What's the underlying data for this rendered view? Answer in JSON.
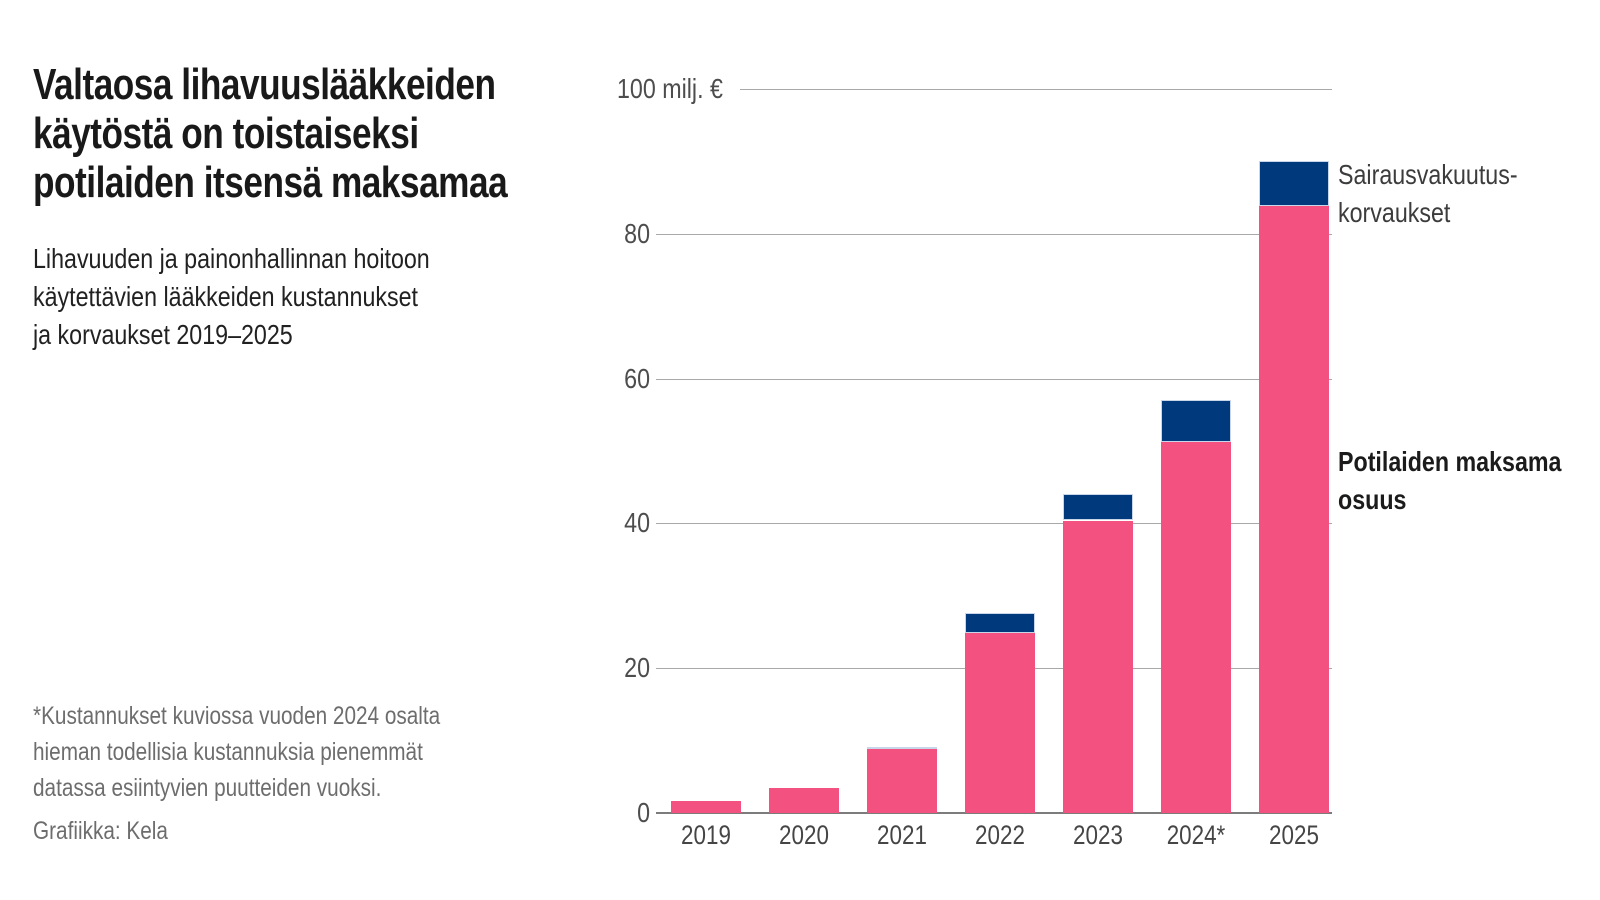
{
  "header": {
    "title_lines": [
      "Valtaosa lihavuuslääkkeiden",
      "käytöstä on toistaiseksi",
      "potilaiden itsensä maksamaa"
    ],
    "subtitle_lines": [
      "Lihavuuden ja painonhallinnan hoitoon",
      "käytettävien lääkkeiden kustannukset",
      "ja korvaukset 2019–2025"
    ]
  },
  "footnote_lines": [
    "*Kustannukset kuviossa vuoden 2024 osalta",
    "hieman todellisia kustannuksia pienemmät",
    "datassa esiintyvien puutteiden vuoksi."
  ],
  "credit": "Grafiikka: Kela",
  "chart_data": {
    "type": "bar",
    "stacked": true,
    "title": "Lihavuuden ja painonhallinnan hoitoon käytettävien lääkkeiden kustannukset ja korvaukset 2019–2025",
    "unit": "milj. €",
    "categories": [
      "2019",
      "2020",
      "2021",
      "2022",
      "2023",
      "2024*",
      "2025"
    ],
    "series": [
      {
        "name": "Potilaiden maksama osuus",
        "color": "#f3517f",
        "values": [
          1.7,
          3.5,
          8.8,
          24.8,
          40.4,
          51.3,
          83.8
        ]
      },
      {
        "name": "Sairausvakuutuskorvaukset",
        "color": "#003a7d",
        "values": [
          0,
          0,
          0.3,
          2.8,
          3.7,
          5.8,
          6.2
        ]
      }
    ],
    "ylim": [
      0,
      100
    ],
    "grid": true,
    "yticks": [
      {
        "value": 0,
        "label": "0"
      },
      {
        "value": 20,
        "label": "20"
      },
      {
        "value": 40,
        "label": "40"
      },
      {
        "value": 60,
        "label": "60"
      },
      {
        "value": 80,
        "label": "80"
      },
      {
        "value": 100,
        "label": "100 milj. €"
      }
    ],
    "legend_annotations": [
      {
        "lines": [
          "Sairausvakuutus-",
          "korvaukset"
        ],
        "series": "Sairausvakuutuskorvaukset",
        "bold": false
      },
      {
        "lines": [
          "Potilaiden maksama",
          "osuus"
        ],
        "series": "Potilaiden maksama osuus",
        "bold": true
      }
    ]
  }
}
